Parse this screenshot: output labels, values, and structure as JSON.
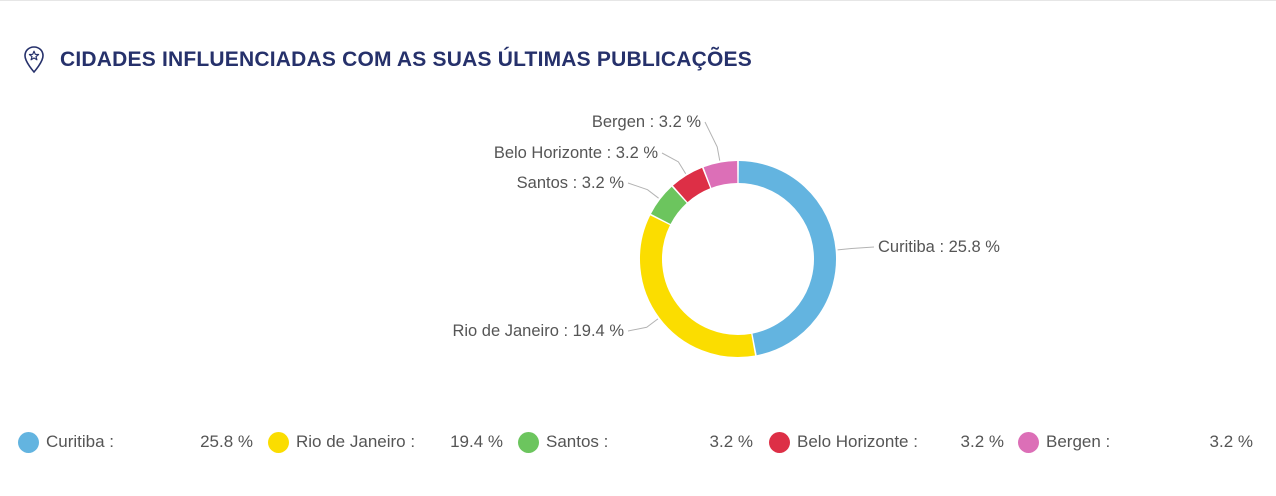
{
  "title": "CIDADES INFLUENCIADAS COM AS SUAS ÚLTIMAS PUBLICAÇÕES",
  "icons": {
    "header": "map-pin-star-icon"
  },
  "colors": {
    "title": "#26316b",
    "text": "#555555",
    "leader": "#b3b3b3"
  },
  "chart_data": {
    "type": "pie",
    "variant": "donut",
    "title": "CIDADES INFLUENCIADAS COM AS SUAS ÚLTIMAS PUBLICAÇÕES",
    "categories": [
      "Curitiba",
      "Rio de Janeiro",
      "Santos",
      "Belo Horizonte",
      "Bergen"
    ],
    "values": [
      25.8,
      19.4,
      3.2,
      3.2,
      3.2
    ],
    "colors": [
      "#63b4e0",
      "#fbdd00",
      "#6cc55e",
      "#dd2f46",
      "#dc6fb7"
    ],
    "slice_labels": [
      "Curitiba : 25.8 %",
      "Rio de Janeiro : 19.4 %",
      "Santos : 3.2 %",
      "Belo Horizonte : 3.2 %",
      "Bergen : 3.2 %"
    ],
    "legend_position": "bottom"
  },
  "legend": [
    {
      "name": "Curitiba :",
      "value": "25.8 %",
      "color": "#63b4e0"
    },
    {
      "name": "Rio de Janeiro :",
      "value": "19.4 %",
      "color": "#fbdd00"
    },
    {
      "name": "Santos :",
      "value": "3.2 %",
      "color": "#6cc55e"
    },
    {
      "name": "Belo Horizonte :",
      "value": "3.2 %",
      "color": "#dd2f46"
    },
    {
      "name": "Bergen :",
      "value": "3.2 %",
      "color": "#dc6fb7"
    }
  ]
}
